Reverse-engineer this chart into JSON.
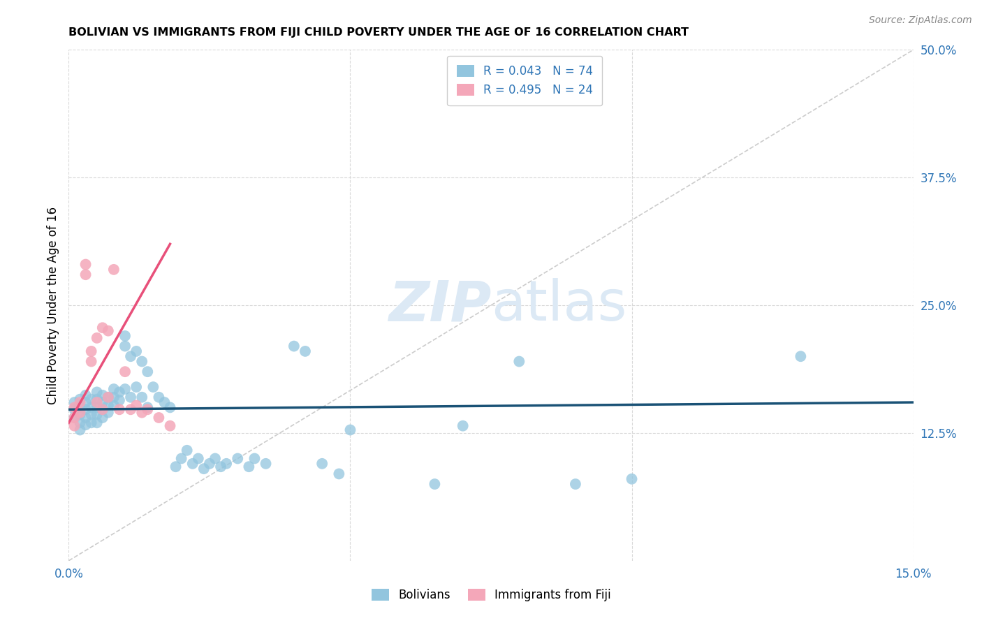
{
  "title": "BOLIVIAN VS IMMIGRANTS FROM FIJI CHILD POVERTY UNDER THE AGE OF 16 CORRELATION CHART",
  "source": "Source: ZipAtlas.com",
  "ylabel": "Child Poverty Under the Age of 16",
  "xlim": [
    0.0,
    0.15
  ],
  "ylim": [
    0.0,
    0.5
  ],
  "blue_color": "#92c5de",
  "blue_line_color": "#1a5276",
  "pink_color": "#f4a7b9",
  "pink_line_color": "#e8507a",
  "diagonal_color": "#cccccc",
  "text_color": "#2e75b6",
  "grid_color": "#d9d9d9",
  "bolivians_x": [
    0.001,
    0.001,
    0.001,
    0.002,
    0.002,
    0.002,
    0.002,
    0.002,
    0.003,
    0.003,
    0.003,
    0.003,
    0.003,
    0.004,
    0.004,
    0.004,
    0.004,
    0.005,
    0.005,
    0.005,
    0.005,
    0.005,
    0.006,
    0.006,
    0.006,
    0.006,
    0.007,
    0.007,
    0.007,
    0.008,
    0.008,
    0.008,
    0.009,
    0.009,
    0.01,
    0.01,
    0.01,
    0.011,
    0.011,
    0.012,
    0.012,
    0.013,
    0.013,
    0.014,
    0.014,
    0.015,
    0.016,
    0.017,
    0.018,
    0.019,
    0.02,
    0.021,
    0.022,
    0.023,
    0.024,
    0.025,
    0.026,
    0.027,
    0.028,
    0.03,
    0.032,
    0.033,
    0.035,
    0.04,
    0.042,
    0.045,
    0.048,
    0.05,
    0.065,
    0.07,
    0.08,
    0.09,
    0.1,
    0.13
  ],
  "bolivians_y": [
    0.155,
    0.148,
    0.14,
    0.158,
    0.15,
    0.143,
    0.135,
    0.128,
    0.162,
    0.155,
    0.148,
    0.14,
    0.133,
    0.158,
    0.15,
    0.143,
    0.135,
    0.165,
    0.158,
    0.15,
    0.143,
    0.135,
    0.162,
    0.155,
    0.148,
    0.14,
    0.16,
    0.152,
    0.145,
    0.168,
    0.16,
    0.152,
    0.165,
    0.157,
    0.22,
    0.21,
    0.168,
    0.2,
    0.16,
    0.205,
    0.17,
    0.195,
    0.16,
    0.185,
    0.15,
    0.17,
    0.16,
    0.155,
    0.15,
    0.092,
    0.1,
    0.108,
    0.095,
    0.1,
    0.09,
    0.095,
    0.1,
    0.092,
    0.095,
    0.1,
    0.092,
    0.1,
    0.095,
    0.21,
    0.205,
    0.095,
    0.085,
    0.128,
    0.075,
    0.132,
    0.195,
    0.075,
    0.08,
    0.2
  ],
  "fiji_x": [
    0.001,
    0.001,
    0.001,
    0.002,
    0.002,
    0.003,
    0.003,
    0.004,
    0.004,
    0.005,
    0.005,
    0.006,
    0.006,
    0.007,
    0.007,
    0.008,
    0.009,
    0.01,
    0.011,
    0.012,
    0.013,
    0.014,
    0.016,
    0.018
  ],
  "fiji_y": [
    0.15,
    0.14,
    0.132,
    0.155,
    0.145,
    0.29,
    0.28,
    0.195,
    0.205,
    0.218,
    0.155,
    0.228,
    0.148,
    0.225,
    0.16,
    0.285,
    0.148,
    0.185,
    0.148,
    0.152,
    0.145,
    0.148,
    0.14,
    0.132
  ],
  "watermark_zip": "ZIP",
  "watermark_atlas": "atlas",
  "watermark_color": "#dce9f5"
}
